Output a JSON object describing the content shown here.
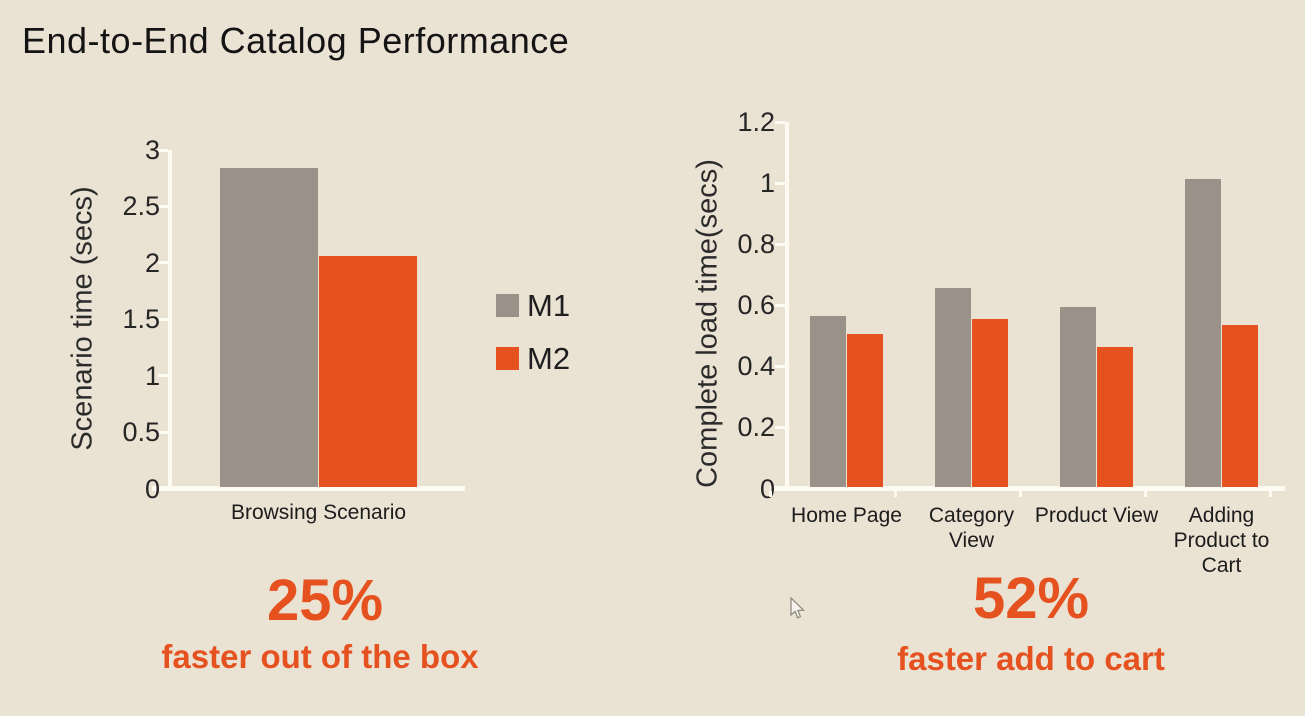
{
  "title": "End-to-End Catalog Performance",
  "colors": {
    "background": "#eae2d3",
    "axis": "#fcfaf1",
    "m1": "#9a9188",
    "m2": "#e5521f",
    "accent_text": "#e5521f",
    "label_text": "#262626"
  },
  "legend": {
    "items": [
      {
        "label": "M1",
        "color": "#9a9188"
      },
      {
        "label": "M2",
        "color": "#e5521f"
      }
    ]
  },
  "chart_data": [
    {
      "type": "bar",
      "title": "",
      "xlabel": "",
      "ylabel": "Scenario time (secs)",
      "categories": [
        "Browsing Scenario"
      ],
      "categories_display": [
        "Browsing Scenario"
      ],
      "series": [
        {
          "name": "M1",
          "color": "#9a9188",
          "values": [
            2.83
          ]
        },
        {
          "name": "M2",
          "color": "#e5521f",
          "values": [
            2.05
          ]
        }
      ],
      "ylim": [
        0,
        3
      ],
      "yticks": [
        0,
        0.5,
        1,
        1.5,
        2,
        2.5,
        3
      ],
      "grid": false,
      "legend_position": "right-of-chart"
    },
    {
      "type": "bar",
      "title": "",
      "xlabel": "",
      "ylabel": "Complete load time(secs)",
      "categories": [
        "Home Page",
        "Category View",
        "Product View",
        "Adding Product to Cart"
      ],
      "categories_display": [
        "Home Page",
        "Category\nView",
        "Product View",
        "Adding\nProduct to\nCart"
      ],
      "series": [
        {
          "name": "M1",
          "color": "#9a9188",
          "values": [
            0.56,
            0.65,
            0.59,
            1.01
          ]
        },
        {
          "name": "M2",
          "color": "#e5521f",
          "values": [
            0.5,
            0.55,
            0.46,
            0.53
          ]
        }
      ],
      "ylim": [
        0,
        1.2
      ],
      "yticks": [
        0,
        0.2,
        0.4,
        0.6,
        0.8,
        1,
        1.2
      ],
      "grid": false,
      "legend_position": "none"
    }
  ],
  "callouts": [
    {
      "value": "25%",
      "caption": "faster out of the box"
    },
    {
      "value": "52%",
      "caption": "faster add to cart"
    }
  ]
}
